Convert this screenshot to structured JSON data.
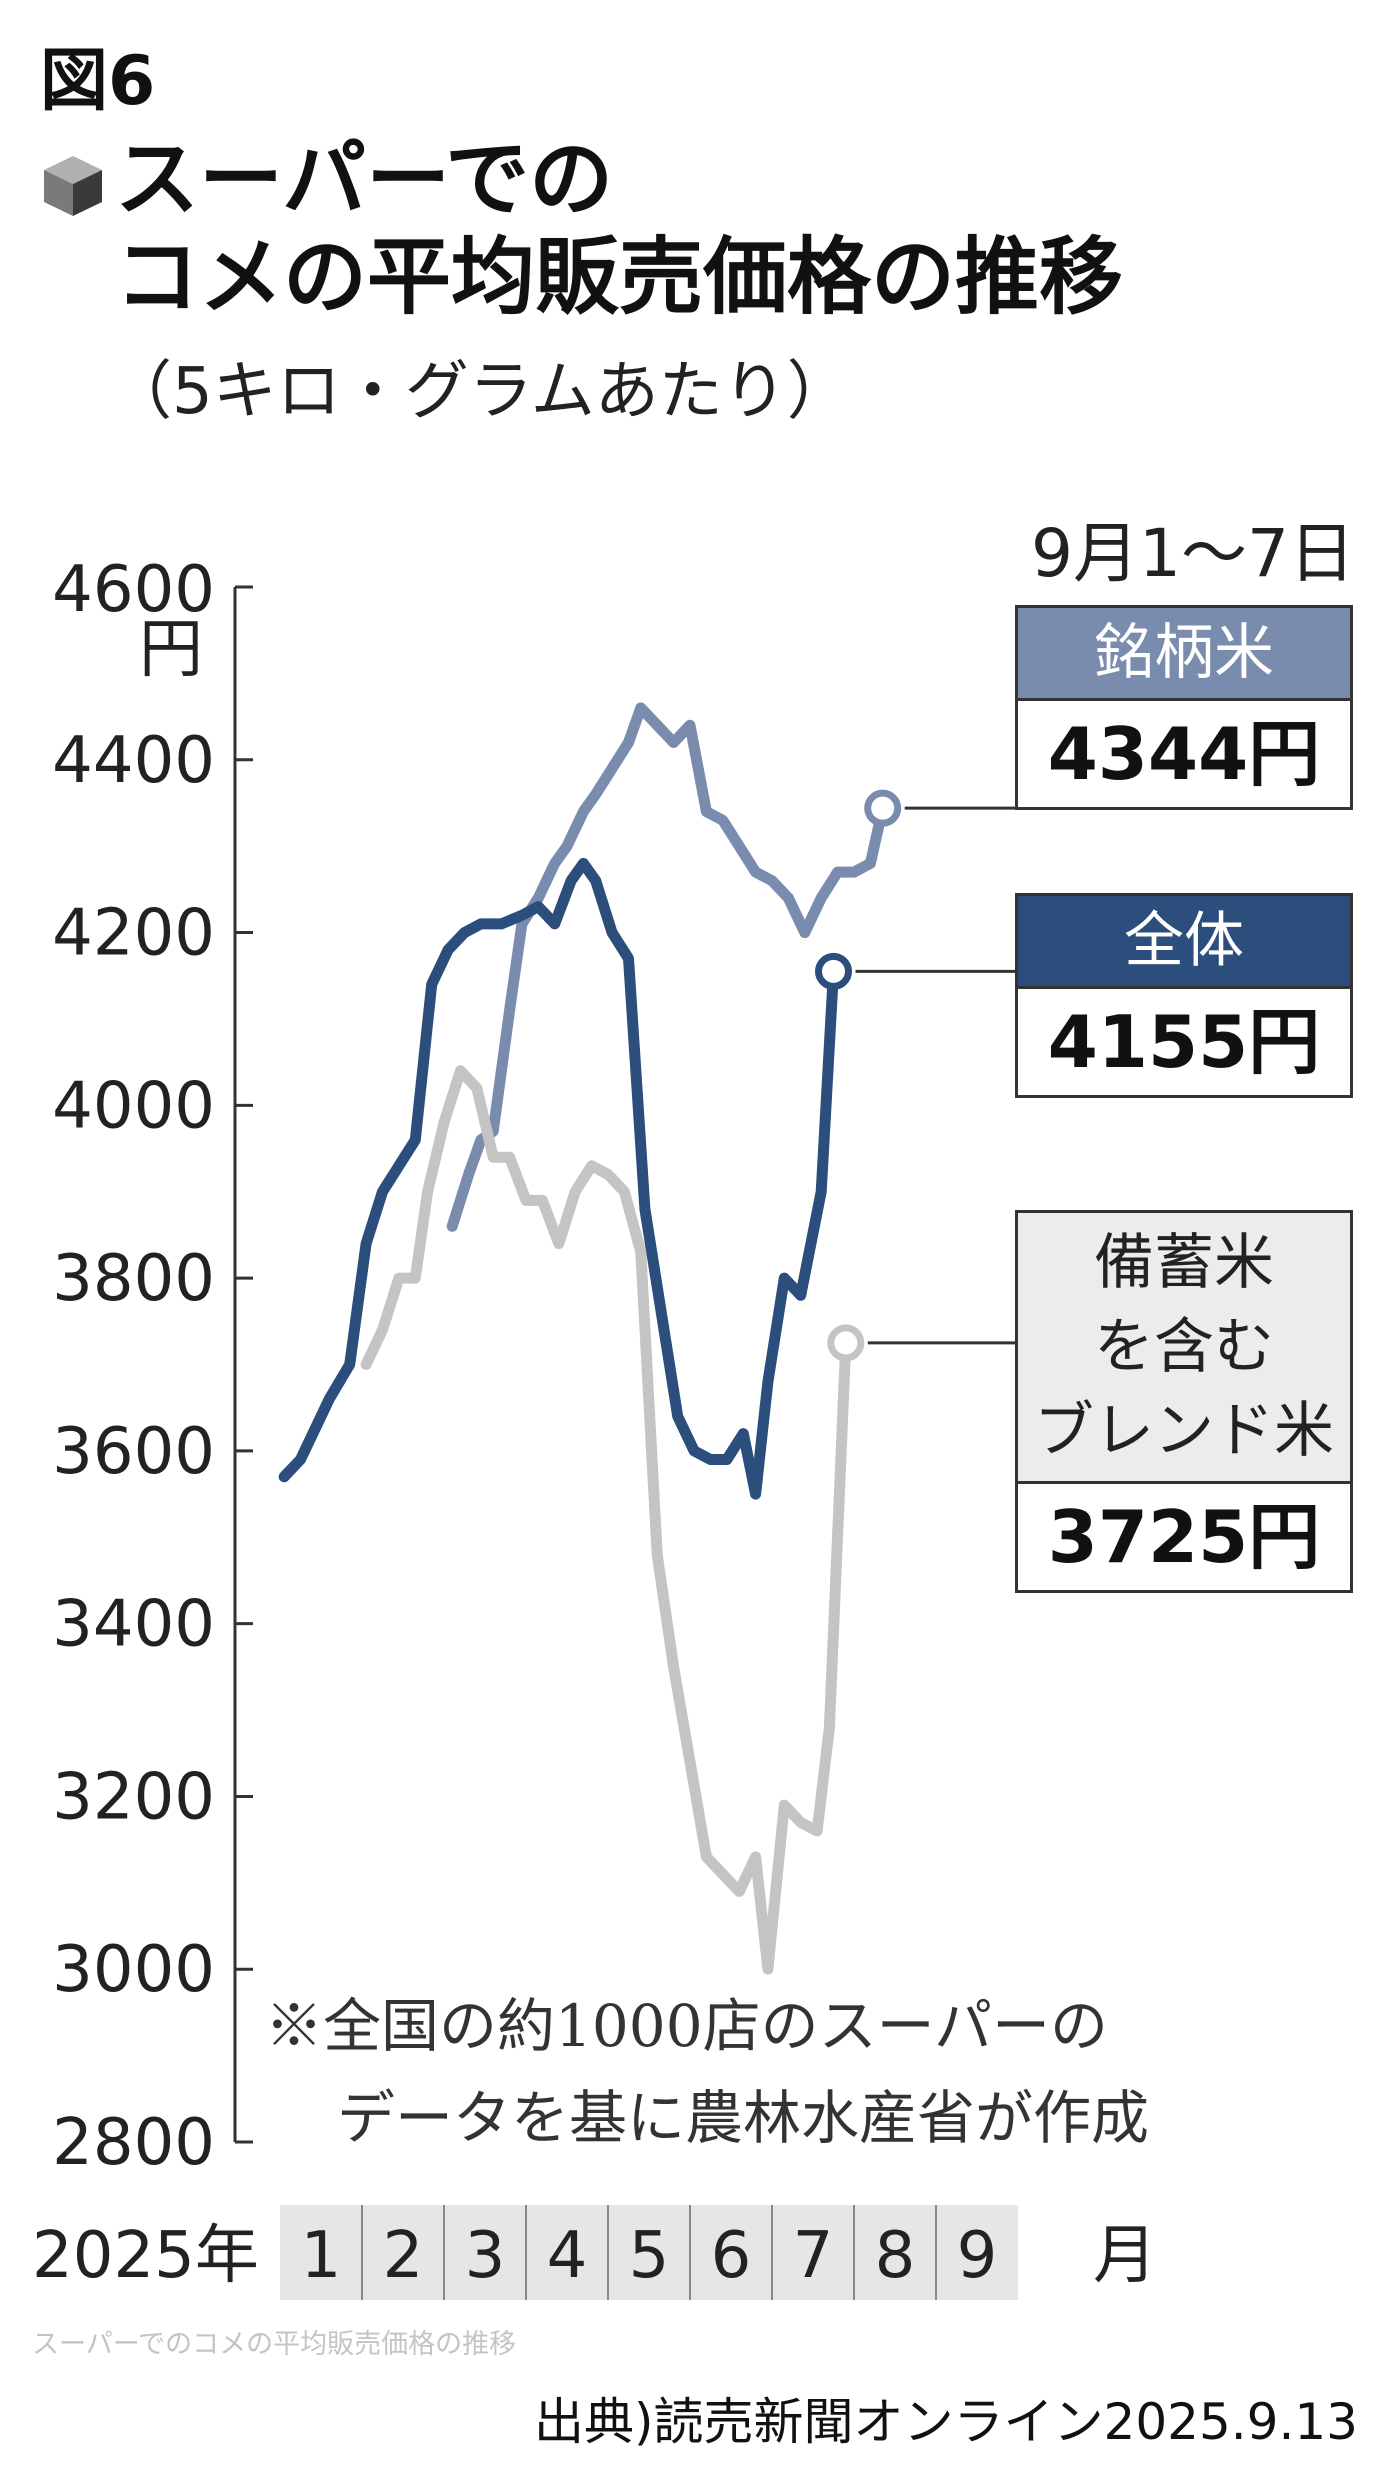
{
  "figure_label": "図6",
  "title_lines": [
    "スーパーでの",
    "コメの平均販売価格の推移"
  ],
  "unit_note": "（5キロ・グラムあたり）",
  "period": "9月1〜7日",
  "footnote_lines": [
    "※全国の約1000店のスーパーの",
    "データを基に農林水産省が作成"
  ],
  "caption": "スーパーでのコメの平均販売価格の推移",
  "source": "出典)読売新聞オンライン2025.9.13",
  "chart_data": {
    "type": "line",
    "title": "スーパーでのコメの平均販売価格の推移",
    "ylabel": "円",
    "ylim": [
      2800,
      4600
    ],
    "yticks": [
      "4600",
      "4400",
      "4200",
      "4000",
      "3800",
      "3600",
      "3400",
      "3200",
      "3000",
      "2800"
    ],
    "year_label": "2025年",
    "months": [
      "1",
      "2",
      "3",
      "4",
      "5",
      "6",
      "7",
      "8",
      "9"
    ],
    "month_unit": "月",
    "series": [
      {
        "name": "銘柄米",
        "color": "#7a8cae",
        "end_label": "4344円",
        "points": [
          [
            2.1,
            3860
          ],
          [
            2.3,
            3920
          ],
          [
            2.45,
            3960
          ],
          [
            2.6,
            3970
          ],
          [
            2.8,
            4110
          ],
          [
            2.95,
            4210
          ],
          [
            3.15,
            4240
          ],
          [
            3.35,
            4280
          ],
          [
            3.5,
            4300
          ],
          [
            3.7,
            4340
          ],
          [
            3.85,
            4360
          ],
          [
            4.05,
            4390
          ],
          [
            4.25,
            4420
          ],
          [
            4.4,
            4460
          ],
          [
            4.6,
            4440
          ],
          [
            4.8,
            4420
          ],
          [
            5.0,
            4440
          ],
          [
            5.2,
            4340
          ],
          [
            5.4,
            4330
          ],
          [
            5.6,
            4300
          ],
          [
            5.8,
            4270
          ],
          [
            6.0,
            4260
          ],
          [
            6.2,
            4240
          ],
          [
            6.4,
            4200
          ],
          [
            6.6,
            4240
          ],
          [
            6.8,
            4270
          ],
          [
            7.0,
            4270
          ],
          [
            7.2,
            4280
          ],
          [
            7.35,
            4344
          ]
        ]
      },
      {
        "name": "全体",
        "color": "#2c4e7c",
        "end_label": "4155円",
        "points": [
          [
            0.05,
            3570
          ],
          [
            0.25,
            3590
          ],
          [
            0.4,
            3620
          ],
          [
            0.6,
            3660
          ],
          [
            0.85,
            3700
          ],
          [
            1.05,
            3840
          ],
          [
            1.25,
            3900
          ],
          [
            1.45,
            3930
          ],
          [
            1.65,
            3960
          ],
          [
            1.85,
            4140
          ],
          [
            2.05,
            4180
          ],
          [
            2.25,
            4200
          ],
          [
            2.45,
            4210
          ],
          [
            2.7,
            4210
          ],
          [
            2.95,
            4220
          ],
          [
            3.15,
            4230
          ],
          [
            3.35,
            4210
          ],
          [
            3.55,
            4260
          ],
          [
            3.7,
            4280
          ],
          [
            3.85,
            4260
          ],
          [
            4.05,
            4200
          ],
          [
            4.25,
            4170
          ],
          [
            4.45,
            3880
          ],
          [
            4.65,
            3760
          ],
          [
            4.85,
            3640
          ],
          [
            5.05,
            3600
          ],
          [
            5.25,
            3590
          ],
          [
            5.45,
            3590
          ],
          [
            5.65,
            3620
          ],
          [
            5.8,
            3550
          ],
          [
            5.95,
            3680
          ],
          [
            6.15,
            3800
          ],
          [
            6.35,
            3780
          ],
          [
            6.6,
            3900
          ],
          [
            6.75,
            4155
          ]
        ]
      },
      {
        "name": "備蓄米を含むブレンド米",
        "color": "#c4c4c4",
        "end_label": "3725円",
        "points": [
          [
            1.05,
            3700
          ],
          [
            1.25,
            3740
          ],
          [
            1.45,
            3800
          ],
          [
            1.65,
            3800
          ],
          [
            1.8,
            3900
          ],
          [
            2.0,
            3980
          ],
          [
            2.2,
            4040
          ],
          [
            2.4,
            4020
          ],
          [
            2.6,
            3940
          ],
          [
            2.8,
            3940
          ],
          [
            3.0,
            3890
          ],
          [
            3.2,
            3890
          ],
          [
            3.4,
            3840
          ],
          [
            3.6,
            3900
          ],
          [
            3.8,
            3930
          ],
          [
            4.0,
            3920
          ],
          [
            4.2,
            3900
          ],
          [
            4.4,
            3830
          ],
          [
            4.6,
            3480
          ],
          [
            4.8,
            3350
          ],
          [
            5.0,
            3240
          ],
          [
            5.2,
            3130
          ],
          [
            5.4,
            3110
          ],
          [
            5.6,
            3090
          ],
          [
            5.8,
            3130
          ],
          [
            5.95,
            3000
          ],
          [
            6.15,
            3190
          ],
          [
            6.35,
            3170
          ],
          [
            6.55,
            3160
          ],
          [
            6.7,
            3280
          ],
          [
            6.9,
            3725
          ]
        ]
      }
    ]
  }
}
